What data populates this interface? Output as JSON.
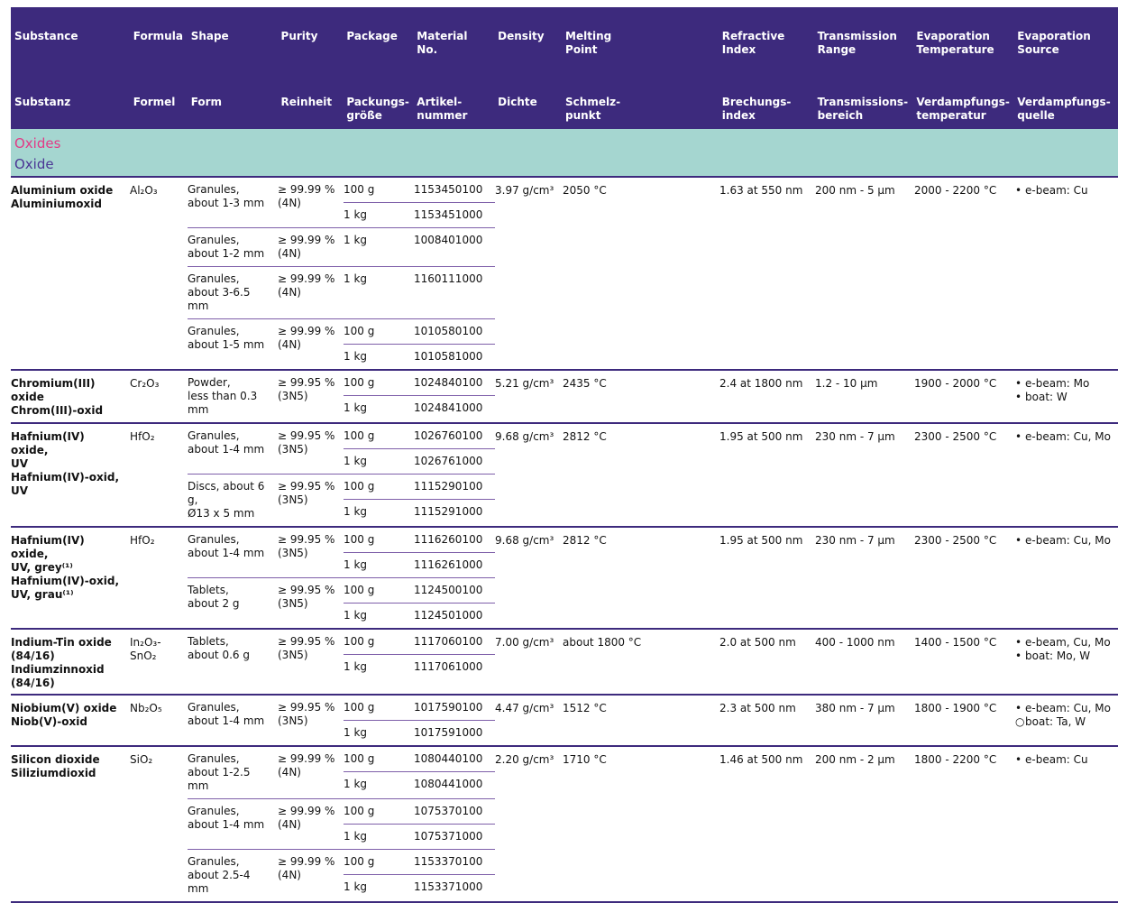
{
  "header": {
    "columns": [
      {
        "en": "Substance",
        "de": "Substanz"
      },
      {
        "en": "Formula",
        "de": "Formel"
      },
      {
        "en": "Shape",
        "de": "Form"
      },
      {
        "en": "Purity",
        "de": "Reinheit"
      },
      {
        "en": "Package",
        "de": "Packungs-\ngröße"
      },
      {
        "en": "Material\nNo.",
        "de": "Artikel-\nnummer"
      },
      {
        "en": "Density",
        "de": "Dichte"
      },
      {
        "en": "Melting\nPoint",
        "de": "Schmelz-\npunkt"
      },
      {
        "en": "Refractive\nIndex",
        "de": "Brechungs-\nindex"
      },
      {
        "en": "Transmission\nRange",
        "de": "Transmissions-\nbereich"
      },
      {
        "en": "Evaporation\nTemperature",
        "de": "Verdampfungs-\ntemperatur"
      },
      {
        "en": "Evaporation\nSource",
        "de": "Verdampfungs-\nquelle"
      }
    ]
  },
  "section": {
    "title_en": "Oxides",
    "title_de": "Oxide"
  },
  "colors": {
    "header_bg": "#3d2a7d",
    "section_bg": "#a5d6d0",
    "section_title_en": "#e23a86",
    "section_title_de": "#4b3594",
    "block_divider": "#3d2a7d",
    "inner_divider": "#7e5fa9"
  },
  "blocks": [
    {
      "name_en": "Aluminium oxide",
      "name_de": "Aluminiumoxid",
      "formula": "Al₂O₃",
      "groups": [
        {
          "shape": "Granules,\nabout 1-3 mm",
          "purity": "≥ 99.99 %\n(4N)",
          "packages": [
            {
              "size": "100 g",
              "mat": "1153450100"
            },
            {
              "size": "1 kg",
              "mat": "1153451000"
            }
          ]
        },
        {
          "shape": "Granules,\nabout 1-2 mm",
          "purity": "≥ 99.99 %\n(4N)",
          "packages": [
            {
              "size": "1 kg",
              "mat": "1008401000"
            }
          ]
        },
        {
          "shape": "Granules,\nabout 3-6.5 mm",
          "purity": "≥ 99.99 %\n(4N)",
          "packages": [
            {
              "size": "1 kg",
              "mat": "1160111000"
            }
          ]
        },
        {
          "shape": "Granules,\nabout 1-5 mm",
          "purity": "≥ 99.99 %\n(4N)",
          "packages": [
            {
              "size": "100 g",
              "mat": "1010580100"
            },
            {
              "size": "1 kg",
              "mat": "1010581000"
            }
          ]
        }
      ],
      "density": "3.97 g/cm³",
      "melting": "2050 °C",
      "refractive": "1.63 at 550 nm",
      "transmission": "200 nm - 5 µm",
      "evap_temp": "2000 - 2200 °C",
      "sources": [
        {
          "bullet": "•",
          "text": "e-beam: Cu"
        }
      ]
    },
    {
      "name_en": "Chromium(III)\noxide",
      "name_de": "Chrom(III)-oxid",
      "formula": "Cr₂O₃",
      "groups": [
        {
          "shape": "Powder,\nless than 0.3 mm",
          "purity": "≥ 99.95 %\n(3N5)",
          "packages": [
            {
              "size": "100 g",
              "mat": "1024840100"
            },
            {
              "size": "1 kg",
              "mat": "1024841000"
            }
          ]
        }
      ],
      "density": "5.21 g/cm³",
      "melting": "2435 °C",
      "refractive": "2.4 at 1800 nm",
      "transmission": "1.2 - 10 µm",
      "evap_temp": "1900 - 2000 °C",
      "sources": [
        {
          "bullet": "•",
          "text": "e-beam: Mo"
        },
        {
          "bullet": "•",
          "text": "boat: W"
        }
      ]
    },
    {
      "name_en": "Hafnium(IV) oxide,\nUV",
      "name_de": "Hafnium(IV)-oxid,\nUV",
      "formula": "HfO₂",
      "groups": [
        {
          "shape": "Granules,\nabout 1-4 mm",
          "purity": "≥ 99.95 %\n(3N5)",
          "packages": [
            {
              "size": "100 g",
              "mat": "1026760100"
            },
            {
              "size": "1 kg",
              "mat": "1026761000"
            }
          ]
        },
        {
          "shape": "Discs, about 6 g,\nØ13 x 5 mm",
          "purity": "≥ 99.95 %\n(3N5)",
          "packages": [
            {
              "size": "100 g",
              "mat": "1115290100"
            },
            {
              "size": "1 kg",
              "mat": "1115291000"
            }
          ]
        }
      ],
      "density": "9.68 g/cm³",
      "melting": "2812 °C",
      "refractive": "1.95 at 500 nm",
      "transmission": "230 nm - 7 µm",
      "evap_temp": "2300 - 2500 °C",
      "sources": [
        {
          "bullet": "•",
          "text": "e-beam: Cu, Mo"
        }
      ]
    },
    {
      "name_en": "Hafnium(IV) oxide,\nUV, grey⁽¹⁾",
      "name_de": "Hafnium(IV)-oxid,\nUV, grau⁽¹⁾",
      "formula": "HfO₂",
      "groups": [
        {
          "shape": "Granules,\nabout 1-4 mm",
          "purity": "≥ 99.95 %\n(3N5)",
          "packages": [
            {
              "size": "100 g",
              "mat": "1116260100"
            },
            {
              "size": "1 kg",
              "mat": "1116261000"
            }
          ]
        },
        {
          "shape": "Tablets,\nabout 2 g",
          "purity": "≥ 99.95 %\n(3N5)",
          "packages": [
            {
              "size": "100 g",
              "mat": "1124500100"
            },
            {
              "size": "1 kg",
              "mat": "1124501000"
            }
          ]
        }
      ],
      "density": "9.68 g/cm³",
      "melting": "2812 °C",
      "refractive": "1.95 at 500 nm",
      "transmission": "230 nm - 7 µm",
      "evap_temp": "2300 - 2500 °C",
      "sources": [
        {
          "bullet": "•",
          "text": "e-beam: Cu, Mo"
        }
      ]
    },
    {
      "name_en": "Indium-Tin oxide\n(84/16)",
      "name_de": "Indiumzinnoxid\n(84/16)",
      "formula": "In₂O₃-\nSnO₂",
      "groups": [
        {
          "shape": "Tablets,\nabout 0.6 g",
          "purity": "≥ 99.95 %\n(3N5)",
          "packages": [
            {
              "size": "100 g",
              "mat": "1117060100"
            },
            {
              "size": "1 kg",
              "mat": "1117061000"
            }
          ]
        }
      ],
      "density": "7.00 g/cm³",
      "melting": "about 1800 °C",
      "refractive": "2.0 at 500 nm",
      "transmission": "400 - 1000 nm",
      "evap_temp": "1400 - 1500 °C",
      "sources": [
        {
          "bullet": "•",
          "text": "e-beam, Cu, Mo"
        },
        {
          "bullet": "•",
          "text": "boat: Mo, W"
        }
      ]
    },
    {
      "name_en": "Niobium(V) oxide",
      "name_de": "Niob(V)-oxid",
      "formula": "Nb₂O₅",
      "groups": [
        {
          "shape": "Granules,\nabout 1-4 mm",
          "purity": "≥ 99.95 %\n(3N5)",
          "packages": [
            {
              "size": "100 g",
              "mat": "1017590100"
            },
            {
              "size": "1 kg",
              "mat": "1017591000"
            }
          ]
        }
      ],
      "density": "4.47 g/cm³",
      "melting": "1512 °C",
      "refractive": "2.3 at 500 nm",
      "transmission": "380 nm - 7 µm",
      "evap_temp": "1800 - 1900 °C",
      "sources": [
        {
          "bullet": "•",
          "text": "e-beam: Cu, Mo"
        },
        {
          "bullet": "○",
          "text": "boat: Ta, W"
        }
      ]
    },
    {
      "name_en": "Silicon dioxide",
      "name_de": "Siliziumdioxid",
      "formula": "SiO₂",
      "groups": [
        {
          "shape": "Granules,\nabout 1-2.5 mm",
          "purity": "≥ 99.99 %\n(4N)",
          "packages": [
            {
              "size": "100 g",
              "mat": "1080440100"
            },
            {
              "size": "1 kg",
              "mat": "1080441000"
            }
          ]
        },
        {
          "shape": "Granules,\nabout 1-4 mm",
          "purity": "≥ 99.99 %\n(4N)",
          "packages": [
            {
              "size": "100 g",
              "mat": "1075370100"
            },
            {
              "size": "1 kg",
              "mat": "1075371000"
            }
          ]
        },
        {
          "shape": "Granules,\nabout 2.5-4 mm",
          "purity": "≥ 99.99 %\n(4N)",
          "packages": [
            {
              "size": "100 g",
              "mat": "1153370100"
            },
            {
              "size": "1 kg",
              "mat": "1153371000"
            }
          ]
        }
      ],
      "density": "2.20 g/cm³",
      "melting": "1710 °C",
      "refractive": "1.46 at 500 nm",
      "transmission": "200 nm - 2 µm",
      "evap_temp": "1800 - 2200 °C",
      "sources": [
        {
          "bullet": "•",
          "text": "e-beam: Cu"
        }
      ]
    }
  ]
}
